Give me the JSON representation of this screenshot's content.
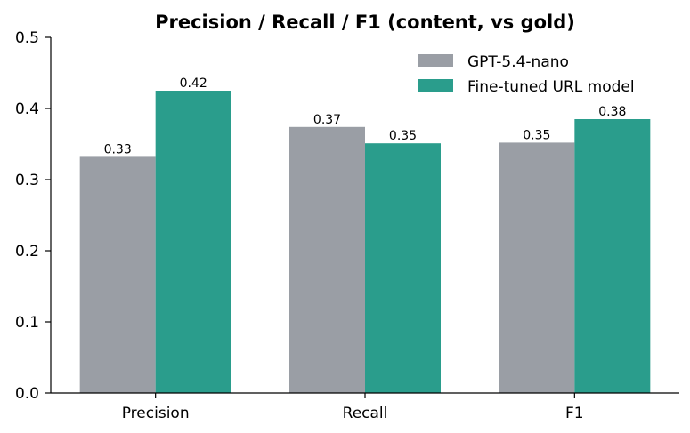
{
  "chart_data": {
    "type": "bar",
    "title": "Precision / Recall / F1 (content, vs gold)",
    "xlabel": "",
    "ylabel": "",
    "categories": [
      "Precision",
      "Recall",
      "F1"
    ],
    "ylim": [
      0,
      0.5
    ],
    "yticks": [
      "0.0",
      "0.1",
      "0.2",
      "0.3",
      "0.4",
      "0.5"
    ],
    "grid": false,
    "legend_position": "top-right",
    "series": [
      {
        "name": "GPT-5.4-nano",
        "color": "#9a9ea5",
        "values": [
          0.332,
          0.374,
          0.352
        ],
        "labels": [
          "0.33",
          "0.37",
          "0.35"
        ]
      },
      {
        "name": "Fine-tuned URL model",
        "color": "#2a9d8c",
        "values": [
          0.425,
          0.351,
          0.385
        ],
        "labels": [
          "0.42",
          "0.35",
          "0.38"
        ]
      }
    ]
  }
}
